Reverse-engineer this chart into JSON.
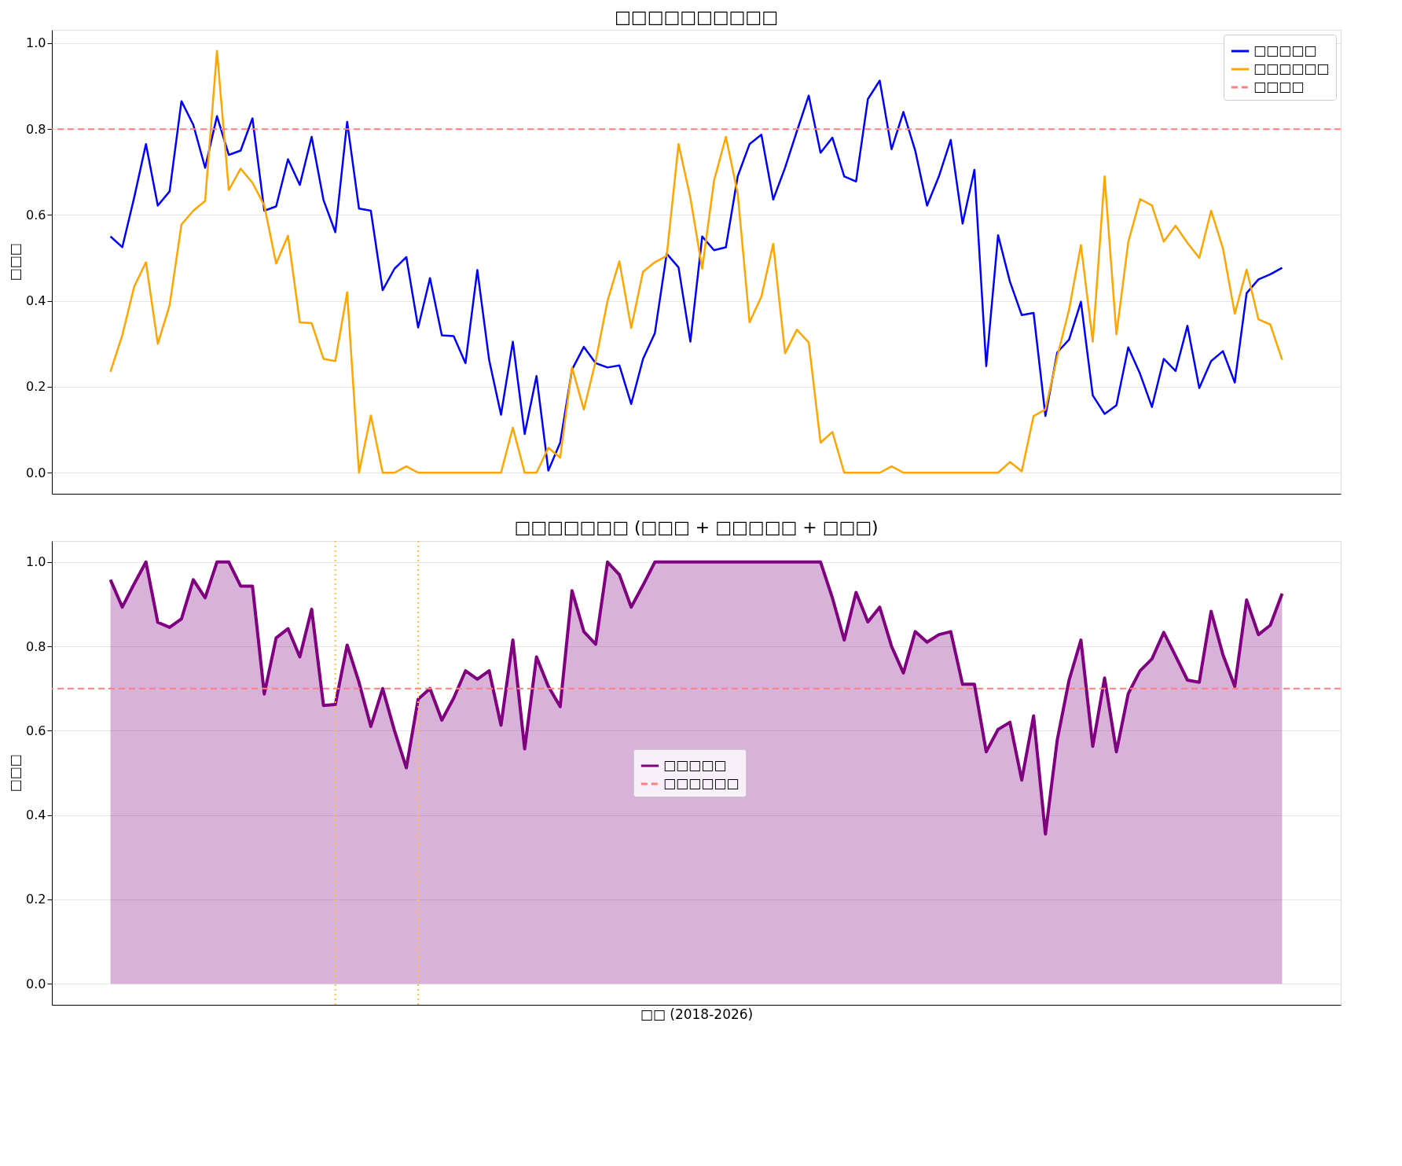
{
  "chart_data": [
    {
      "type": "line",
      "title": "□□□□□□□□□□",
      "ylabel": "□□□",
      "categories": [
        null,
        null,
        null,
        null,
        null,
        null,
        null,
        null,
        null,
        null,
        null,
        null,
        null,
        null,
        null,
        null,
        null,
        null,
        null,
        null,
        null,
        null,
        null,
        null,
        null,
        null,
        null,
        null,
        null,
        null,
        null,
        null,
        null,
        null,
        null,
        null,
        null,
        null,
        null,
        null,
        null,
        null,
        null,
        null,
        null,
        null,
        null,
        null,
        null,
        null,
        null,
        null,
        null,
        null,
        null,
        null,
        null,
        null,
        null,
        null,
        null,
        null,
        null,
        null,
        null,
        null,
        null,
        null,
        null,
        null,
        null,
        null,
        null,
        null,
        null,
        null,
        null,
        null,
        null,
        null,
        null,
        null,
        null,
        null,
        null,
        null,
        null,
        null,
        null,
        null,
        null,
        null,
        null,
        null,
        null,
        null,
        null,
        null,
        null,
        null
      ],
      "ylim": [
        -0.049,
        1.031
      ],
      "yticks": [
        {
          "value": 0,
          "label": "0.0"
        },
        {
          "value": 0.2,
          "label": "0.2"
        },
        {
          "value": 0.4,
          "label": "0.4"
        },
        {
          "value": 0.6,
          "label": "0.6"
        },
        {
          "value": 0.8,
          "label": "0.8"
        },
        {
          "value": 1,
          "label": "1.0"
        }
      ],
      "tick_labels": "y",
      "grid": "y",
      "legend": "top right",
      "series": [
        {
          "name": "□□□□□",
          "color": "#0000ff",
          "values": [
            0.55,
            0.525,
            0.64,
            0.765,
            0.622,
            0.655,
            0.865,
            0.81,
            0.71,
            0.83,
            0.74,
            0.75,
            0.825,
            0.61,
            0.62,
            0.73,
            0.67,
            0.782,
            0.635,
            0.56,
            0.817,
            0.615,
            0.61,
            0.425,
            0.475,
            0.502,
            0.338,
            0.453,
            0.32,
            0.318,
            0.255,
            0.472,
            0.262,
            0.135,
            0.305,
            0.09,
            0.225,
            0.005,
            0.07,
            0.24,
            0.293,
            0.255,
            0.245,
            0.25,
            0.16,
            0.265,
            0.325,
            0.51,
            0.478,
            0.305,
            0.55,
            0.518,
            0.525,
            0.69,
            0.765,
            0.787,
            0.636,
            0.71,
            0.795,
            0.878,
            0.745,
            0.78,
            0.69,
            0.678,
            0.87,
            0.913,
            0.753,
            0.84,
            0.75,
            0.622,
            0.69,
            0.775,
            0.58,
            0.705,
            0.248,
            0.553,
            0.445,
            0.367,
            0.372,
            0.132,
            0.28,
            0.31,
            0.398,
            0.18,
            0.137,
            0.157,
            0.292,
            0.23,
            0.153,
            0.265,
            0.237,
            0.342,
            0.197,
            0.26,
            0.283,
            0.21,
            0.418,
            0.45,
            0.462,
            0.477
          ]
        },
        {
          "name": "□□□□□□",
          "color": "#ffa500",
          "values": [
            0.235,
            0.32,
            0.433,
            0.49,
            0.3,
            0.39,
            0.578,
            0.61,
            0.633,
            0.982,
            0.658,
            0.708,
            0.675,
            0.622,
            0.487,
            0.552,
            0.35,
            0.348,
            0.265,
            0.26,
            0.42,
            0.0,
            0.133,
            0.0,
            0.0,
            0.015,
            0.0,
            0.0,
            0.0,
            0.0,
            0.0,
            0.0,
            0.0,
            0.0,
            0.105,
            0.0,
            0.0,
            0.058,
            0.035,
            0.245,
            0.147,
            0.26,
            0.4,
            0.492,
            0.337,
            0.468,
            0.49,
            0.505,
            0.765,
            0.64,
            0.475,
            0.68,
            0.782,
            0.65,
            0.35,
            0.41,
            0.533,
            0.278,
            0.333,
            0.303,
            0.07,
            0.095,
            0.0,
            0.0,
            0.0,
            0.0,
            0.015,
            0.0,
            0.0,
            0.0,
            0.0,
            0.0,
            0.0,
            0.0,
            0.0,
            0.0,
            0.025,
            0.003,
            0.132,
            0.147,
            0.27,
            0.38,
            0.53,
            0.305,
            0.69,
            0.322,
            0.537,
            0.637,
            0.622,
            0.538,
            0.575,
            0.535,
            0.5,
            0.61,
            0.522,
            0.37,
            0.473,
            0.357,
            0.345,
            0.263
          ]
        }
      ],
      "ref_lines": [
        {
          "axis": "y",
          "value": 0.8,
          "label": "□□□□",
          "color": "#ff7f7f",
          "line_style": "dashed"
        }
      ]
    },
    {
      "type": "area",
      "title": "□□□□□□□ (□□□ + □□□□□ + □□□)",
      "xlabel": "□□ (2018-2026)",
      "ylabel": "□□□",
      "categories": [
        null,
        null,
        null,
        null,
        null,
        null,
        null,
        null,
        null,
        null,
        null,
        null,
        null,
        null,
        null,
        null,
        null,
        null,
        null,
        null,
        null,
        null,
        null,
        null,
        null,
        null,
        null,
        null,
        null,
        null,
        null,
        null,
        null,
        null,
        null,
        null,
        null,
        null,
        null,
        null,
        null,
        null,
        null,
        null,
        null,
        null,
        null,
        null,
        null,
        null,
        null,
        null,
        null,
        null,
        null,
        null,
        null,
        null,
        null,
        null,
        null,
        null,
        null,
        null,
        null,
        null,
        null,
        null,
        null,
        null,
        null,
        null,
        null,
        null,
        null,
        null,
        null,
        null,
        null,
        null,
        null,
        null,
        null,
        null,
        null,
        null,
        null,
        null,
        null,
        null,
        null,
        null,
        null,
        null,
        null,
        null,
        null,
        null,
        null,
        null
      ],
      "ylim": [
        -0.05,
        1.05
      ],
      "yticks": [
        {
          "value": 0,
          "label": "0.0"
        },
        {
          "value": 0.2,
          "label": "0.2"
        },
        {
          "value": 0.4,
          "label": "0.4"
        },
        {
          "value": 0.6,
          "label": "0.6"
        },
        {
          "value": 0.8,
          "label": "0.8"
        },
        {
          "value": 1,
          "label": "1.0"
        }
      ],
      "tick_labels": "y",
      "grid": "y",
      "legend": "center",
      "series": [
        {
          "name": "□□□□□",
          "color": "#800080",
          "values": [
            0.958,
            0.893,
            0.948,
            1.0,
            0.857,
            0.845,
            0.865,
            0.958,
            0.915,
            1.0,
            1.0,
            0.943,
            0.943,
            0.687,
            0.82,
            0.842,
            0.775,
            0.888,
            0.66,
            0.662,
            0.803,
            0.715,
            0.61,
            0.7,
            0.6,
            0.512,
            0.675,
            0.7,
            0.625,
            0.677,
            0.742,
            0.722,
            0.742,
            0.613,
            0.815,
            0.557,
            0.775,
            0.705,
            0.657,
            0.932,
            0.835,
            0.805,
            1.0,
            0.97,
            0.893,
            0.945,
            1.0,
            1.0,
            1.0,
            1.0,
            1.0,
            1.0,
            1.0,
            1.0,
            1.0,
            1.0,
            1.0,
            1.0,
            1.0,
            1.0,
            1.0,
            0.915,
            0.815,
            0.928,
            0.858,
            0.893,
            0.8,
            0.737,
            0.835,
            0.81,
            0.828,
            0.835,
            0.71,
            0.71,
            0.55,
            0.603,
            0.62,
            0.483,
            0.635,
            0.355,
            0.578,
            0.72,
            0.815,
            0.563,
            0.725,
            0.55,
            0.688,
            0.742,
            0.77,
            0.833,
            0.777,
            0.72,
            0.715,
            0.883,
            0.78,
            0.705,
            0.91,
            0.828,
            0.85,
            0.925
          ]
        }
      ],
      "ref_lines": [
        {
          "axis": "y",
          "value": 0.7,
          "label": "□□□□□□",
          "color": "#ff7f7f",
          "line_style": "dashed"
        }
      ]
    }
  ]
}
